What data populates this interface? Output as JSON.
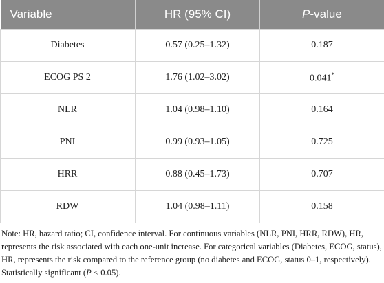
{
  "table": {
    "header": [
      "Variable",
      "HR (95% CI)",
      {
        "italic": "P",
        "text": "-value"
      }
    ],
    "rows": [
      [
        "Diabetes",
        "0.57 (0.25–1.32)",
        "0.187"
      ],
      [
        "ECOG PS 2",
        "1.76 (1.02–3.02)",
        {
          "text": "0.041",
          "sup": "*"
        }
      ],
      [
        "NLR",
        "1.04 (0.98–1.10)",
        "0.164"
      ],
      [
        "PNI",
        "0.99 (0.93–1.05)",
        "0.725"
      ],
      [
        "HRR",
        "0.88 (0.45–1.73)",
        "0.707"
      ],
      [
        "RDW",
        "1.04 (0.98–1.11)",
        "0.158"
      ]
    ]
  },
  "note": [
    "Note: HR, hazard ratio; CI, confidence interval. For continuous variables (NLR, PNI, HRR, RDW), HR, represents the risk associated with each one-unit increase. For categorical variables (Diabetes, ECOG, status), HR, represents the risk compared to the reference group (no diabetes and ECOG, status 0–1, respectively). Statistically significant (",
    {
      "italic": "P"
    },
    " < 0.05)."
  ]
}
